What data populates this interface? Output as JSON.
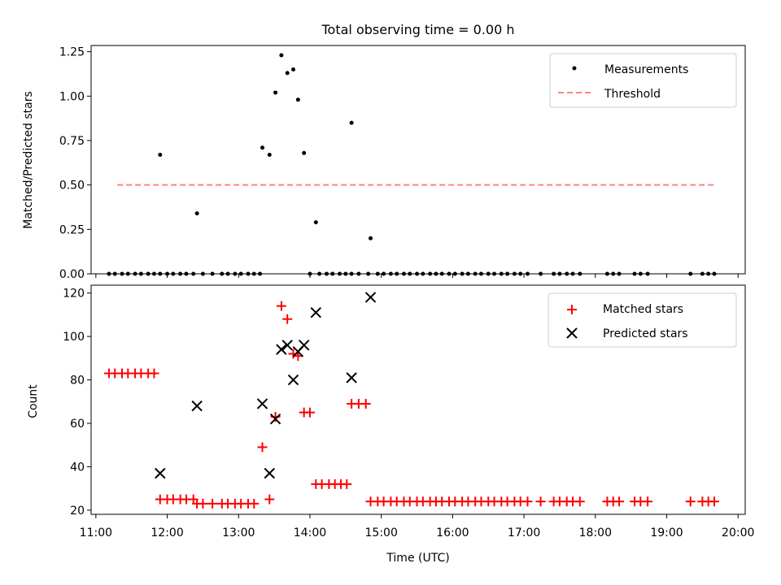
{
  "figure": {
    "title": "Total observing time = 0.00 h"
  },
  "colors": {
    "measurement": "#000000",
    "threshold": "#ff8080",
    "matched": "#ff0000",
    "predicted": "#000000"
  },
  "chart_data": [
    {
      "type": "scatter",
      "ylabel": "Matched/Predicted stars",
      "ylim": [
        0,
        1.285
      ],
      "yticks": [
        0,
        0.25,
        0.5,
        0.75,
        1.0,
        1.25
      ],
      "ytick_labels": [
        "0.00",
        "0.25",
        "0.50",
        "0.75",
        "1.00",
        "1.25"
      ],
      "xlim": [
        "10:56",
        "20:06"
      ],
      "legend": {
        "position": "top-right",
        "entries": [
          "Measurements",
          "Threshold"
        ]
      },
      "threshold": {
        "name": "Threshold",
        "x": [
          "11:18",
          "19:42"
        ],
        "y": 0.5
      },
      "series": [
        {
          "name": "Measurements",
          "points": [
            [
              "11:11",
              0
            ],
            [
              "11:16",
              0
            ],
            [
              "11:22",
              0
            ],
            [
              "11:27",
              0
            ],
            [
              "11:33",
              0
            ],
            [
              "11:38",
              0
            ],
            [
              "11:44",
              0
            ],
            [
              "11:49",
              0
            ],
            [
              "11:54",
              0
            ],
            [
              "11:54",
              0.67
            ],
            [
              "12:00",
              0
            ],
            [
              "12:05",
              0
            ],
            [
              "12:11",
              0
            ],
            [
              "12:16",
              0
            ],
            [
              "12:22",
              0
            ],
            [
              "12:25",
              0.34
            ],
            [
              "12:30",
              0
            ],
            [
              "12:38",
              0
            ],
            [
              "12:46",
              0
            ],
            [
              "12:51",
              0
            ],
            [
              "12:57",
              0
            ],
            [
              "13:02",
              0
            ],
            [
              "13:08",
              0
            ],
            [
              "13:13",
              0
            ],
            [
              "13:18",
              0
            ],
            [
              "13:20",
              0.71
            ],
            [
              "13:26",
              0.67
            ],
            [
              "13:31",
              1.02
            ],
            [
              "13:36",
              1.23
            ],
            [
              "13:41",
              1.13
            ],
            [
              "13:46",
              1.15
            ],
            [
              "13:50",
              0.98
            ],
            [
              "13:55",
              0.68
            ],
            [
              "14:00",
              0
            ],
            [
              "14:05",
              0.29
            ],
            [
              "14:08",
              0
            ],
            [
              "14:14",
              0
            ],
            [
              "14:19",
              0
            ],
            [
              "14:25",
              0
            ],
            [
              "14:30",
              0
            ],
            [
              "14:35",
              0
            ],
            [
              "14:35",
              0.85
            ],
            [
              "14:41",
              0
            ],
            [
              "14:49",
              0
            ],
            [
              "14:51",
              0.2
            ],
            [
              "14:57",
              0
            ],
            [
              "15:02",
              0
            ],
            [
              "15:08",
              0
            ],
            [
              "15:13",
              0
            ],
            [
              "15:19",
              0
            ],
            [
              "15:24",
              0
            ],
            [
              "15:30",
              0
            ],
            [
              "15:35",
              0
            ],
            [
              "15:41",
              0
            ],
            [
              "15:46",
              0
            ],
            [
              "15:51",
              0
            ],
            [
              "15:57",
              0
            ],
            [
              "16:02",
              0
            ],
            [
              "16:08",
              0
            ],
            [
              "16:13",
              0
            ],
            [
              "16:19",
              0
            ],
            [
              "16:24",
              0
            ],
            [
              "16:30",
              0
            ],
            [
              "16:35",
              0
            ],
            [
              "16:41",
              0
            ],
            [
              "16:46",
              0
            ],
            [
              "16:52",
              0
            ],
            [
              "16:57",
              0
            ],
            [
              "17:03",
              0
            ],
            [
              "17:14",
              0
            ],
            [
              "17:25",
              0
            ],
            [
              "17:30",
              0
            ],
            [
              "17:36",
              0
            ],
            [
              "17:41",
              0
            ],
            [
              "17:47",
              0
            ],
            [
              "18:10",
              0
            ],
            [
              "18:15",
              0
            ],
            [
              "18:20",
              0
            ],
            [
              "18:33",
              0
            ],
            [
              "18:38",
              0
            ],
            [
              "18:44",
              0
            ],
            [
              "19:20",
              0
            ],
            [
              "19:30",
              0
            ],
            [
              "19:35",
              0
            ],
            [
              "19:40",
              0
            ]
          ]
        }
      ]
    },
    {
      "type": "scatter",
      "xlabel": "Time (UTC)",
      "ylabel": "Count",
      "ylim": [
        18.1,
        123.6
      ],
      "yticks": [
        20,
        40,
        60,
        80,
        100,
        120
      ],
      "ytick_labels": [
        "20",
        "40",
        "60",
        "80",
        "100",
        "120"
      ],
      "xlim": [
        "10:56",
        "20:06"
      ],
      "xtick_labels": [
        "11:00",
        "12:00",
        "13:00",
        "14:00",
        "15:00",
        "16:00",
        "17:00",
        "18:00",
        "19:00",
        "20:00"
      ],
      "legend": {
        "position": "top-right",
        "entries": [
          "Matched stars",
          "Predicted stars"
        ]
      },
      "series": [
        {
          "name": "Matched stars",
          "marker": "plus",
          "points": [
            [
              "11:11",
              83
            ],
            [
              "11:16",
              83
            ],
            [
              "11:22",
              83
            ],
            [
              "11:27",
              83
            ],
            [
              "11:33",
              83
            ],
            [
              "11:38",
              83
            ],
            [
              "11:44",
              83
            ],
            [
              "11:49",
              83
            ],
            [
              "11:54",
              25
            ],
            [
              "12:00",
              25
            ],
            [
              "12:05",
              25
            ],
            [
              "12:11",
              25
            ],
            [
              "12:16",
              25
            ],
            [
              "12:22",
              25
            ],
            [
              "12:25",
              23
            ],
            [
              "12:30",
              23
            ],
            [
              "12:38",
              23
            ],
            [
              "12:46",
              23
            ],
            [
              "12:51",
              23
            ],
            [
              "12:57",
              23
            ],
            [
              "13:02",
              23
            ],
            [
              "13:08",
              23
            ],
            [
              "13:13",
              23
            ],
            [
              "13:20",
              49
            ],
            [
              "13:26",
              25
            ],
            [
              "13:31",
              63
            ],
            [
              "13:36",
              114
            ],
            [
              "13:41",
              108
            ],
            [
              "13:46",
              92
            ],
            [
              "13:50",
              91
            ],
            [
              "13:55",
              65
            ],
            [
              "14:00",
              65
            ],
            [
              "14:05",
              32
            ],
            [
              "14:10",
              32
            ],
            [
              "14:16",
              32
            ],
            [
              "14:21",
              32
            ],
            [
              "14:26",
              32
            ],
            [
              "14:31",
              32
            ],
            [
              "14:35",
              69
            ],
            [
              "14:41",
              69
            ],
            [
              "14:47",
              69
            ],
            [
              "14:51",
              24
            ],
            [
              "14:57",
              24
            ],
            [
              "15:02",
              24
            ],
            [
              "15:08",
              24
            ],
            [
              "15:13",
              24
            ],
            [
              "15:19",
              24
            ],
            [
              "15:24",
              24
            ],
            [
              "15:30",
              24
            ],
            [
              "15:35",
              24
            ],
            [
              "15:41",
              24
            ],
            [
              "15:46",
              24
            ],
            [
              "15:51",
              24
            ],
            [
              "15:57",
              24
            ],
            [
              "16:02",
              24
            ],
            [
              "16:08",
              24
            ],
            [
              "16:13",
              24
            ],
            [
              "16:19",
              24
            ],
            [
              "16:24",
              24
            ],
            [
              "16:30",
              24
            ],
            [
              "16:35",
              24
            ],
            [
              "16:41",
              24
            ],
            [
              "16:46",
              24
            ],
            [
              "16:52",
              24
            ],
            [
              "16:57",
              24
            ],
            [
              "17:03",
              24
            ],
            [
              "17:14",
              24
            ],
            [
              "17:25",
              24
            ],
            [
              "17:30",
              24
            ],
            [
              "17:36",
              24
            ],
            [
              "17:41",
              24
            ],
            [
              "17:47",
              24
            ],
            [
              "18:10",
              24
            ],
            [
              "18:15",
              24
            ],
            [
              "18:20",
              24
            ],
            [
              "18:33",
              24
            ],
            [
              "18:38",
              24
            ],
            [
              "18:44",
              24
            ],
            [
              "19:20",
              24
            ],
            [
              "19:30",
              24
            ],
            [
              "19:35",
              24
            ],
            [
              "19:40",
              24
            ]
          ]
        },
        {
          "name": "Predicted stars",
          "marker": "x",
          "points": [
            [
              "11:54",
              37
            ],
            [
              "12:25",
              68
            ],
            [
              "13:20",
              69
            ],
            [
              "13:26",
              37
            ],
            [
              "13:31",
              62
            ],
            [
              "13:36",
              94
            ],
            [
              "13:41",
              96
            ],
            [
              "13:46",
              80
            ],
            [
              "13:50",
              93
            ],
            [
              "13:55",
              96
            ],
            [
              "14:05",
              111
            ],
            [
              "14:35",
              81
            ],
            [
              "14:51",
              118
            ]
          ]
        }
      ]
    }
  ]
}
